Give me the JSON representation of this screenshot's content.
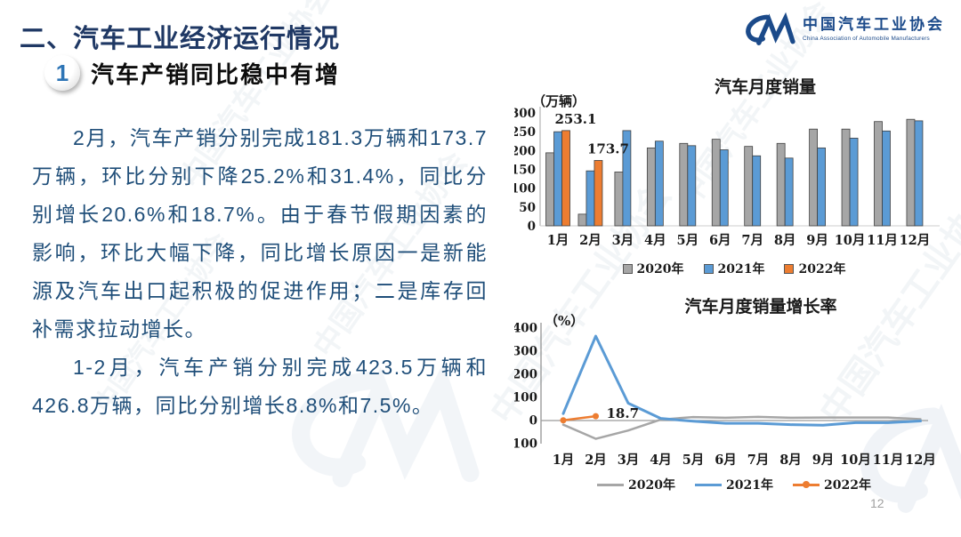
{
  "slide": {
    "title": "二、汽车工业经济运行情况",
    "section": {
      "number": "1",
      "heading": "汽车产销同比稳中有增"
    },
    "paragraphs": [
      "2月，汽车产销分别完成181.3万辆和173.7万辆，环比分别下降25.2%和31.4%，同比分别增长20.6%和18.7%。由于春节假期因素的影响，环比大幅下降，同比增长原因一是新能源及汽车出口起积极的促进作用；二是库存回补需求拉动增长。",
      "1-2月，汽车产销分别完成423.5万辆和426.8万辆，同比分别增长8.8%和7.5%。"
    ],
    "page_number": "12"
  },
  "logo": {
    "name_cn": "中国汽车工业协会",
    "name_en": "China Association of Automobile Manufacturers"
  },
  "watermark": {
    "text": "中国汽车工业协会"
  },
  "colors": {
    "title_blue": "#1f3864",
    "body_blue": "#1f4e79",
    "logo_blue": "#1b4a8a",
    "series_2020": "#a6a6a6",
    "series_2021": "#5b9bd5",
    "series_2022": "#ed7d31"
  },
  "chart_data": [
    {
      "type": "bar",
      "title": "汽车月度销量",
      "unit_label": "（万辆）",
      "categories": [
        "1月",
        "2月",
        "3月",
        "4月",
        "5月",
        "6月",
        "7月",
        "8月",
        "9月",
        "10月",
        "11月",
        "12月"
      ],
      "series": [
        {
          "name": "2020年",
          "color": "#a6a6a6",
          "values": [
            194,
            31,
            143,
            207,
            219,
            230,
            211,
            219,
            257,
            257,
            277,
            283
          ]
        },
        {
          "name": "2021年",
          "color": "#5b9bd5",
          "values": [
            250,
            146,
            253,
            225,
            213,
            202,
            186,
            180,
            207,
            233,
            252,
            279
          ]
        },
        {
          "name": "2022年",
          "color": "#ed7d31",
          "values": [
            253.1,
            173.7
          ]
        }
      ],
      "data_labels": [
        {
          "series": "2022年",
          "category": "1月",
          "text": "253.1"
        },
        {
          "series": "2022年",
          "category": "2月",
          "text": "173.7"
        }
      ],
      "ylim": [
        0,
        300
      ],
      "ytick_step": 50,
      "grid": false,
      "legend_position": "bottom"
    },
    {
      "type": "line",
      "title": "汽车月度销量增长率",
      "unit_label": "（%）",
      "categories": [
        "1月",
        "2月",
        "3月",
        "4月",
        "5月",
        "6月",
        "7月",
        "8月",
        "9月",
        "10月",
        "11月",
        "12月"
      ],
      "series": [
        {
          "name": "2020年",
          "color": "#a6a6a6",
          "values": [
            -18,
            -79,
            -43,
            4,
            15,
            12,
            16,
            12,
            13,
            13,
            13,
            6
          ]
        },
        {
          "name": "2021年",
          "color": "#5b9bd5",
          "values": [
            30,
            365,
            75,
            9,
            -3,
            -12,
            -12,
            -18,
            -20,
            -9,
            -9,
            -2
          ]
        },
        {
          "name": "2022年",
          "color": "#ed7d31",
          "values": [
            1,
            18.7
          ],
          "marker": true
        }
      ],
      "data_labels": [
        {
          "series": "2022年",
          "category": "2月",
          "text": "18.7"
        }
      ],
      "ylim": [
        -100,
        400
      ],
      "ytick_step": 100,
      "grid": false,
      "legend_position": "bottom"
    }
  ]
}
